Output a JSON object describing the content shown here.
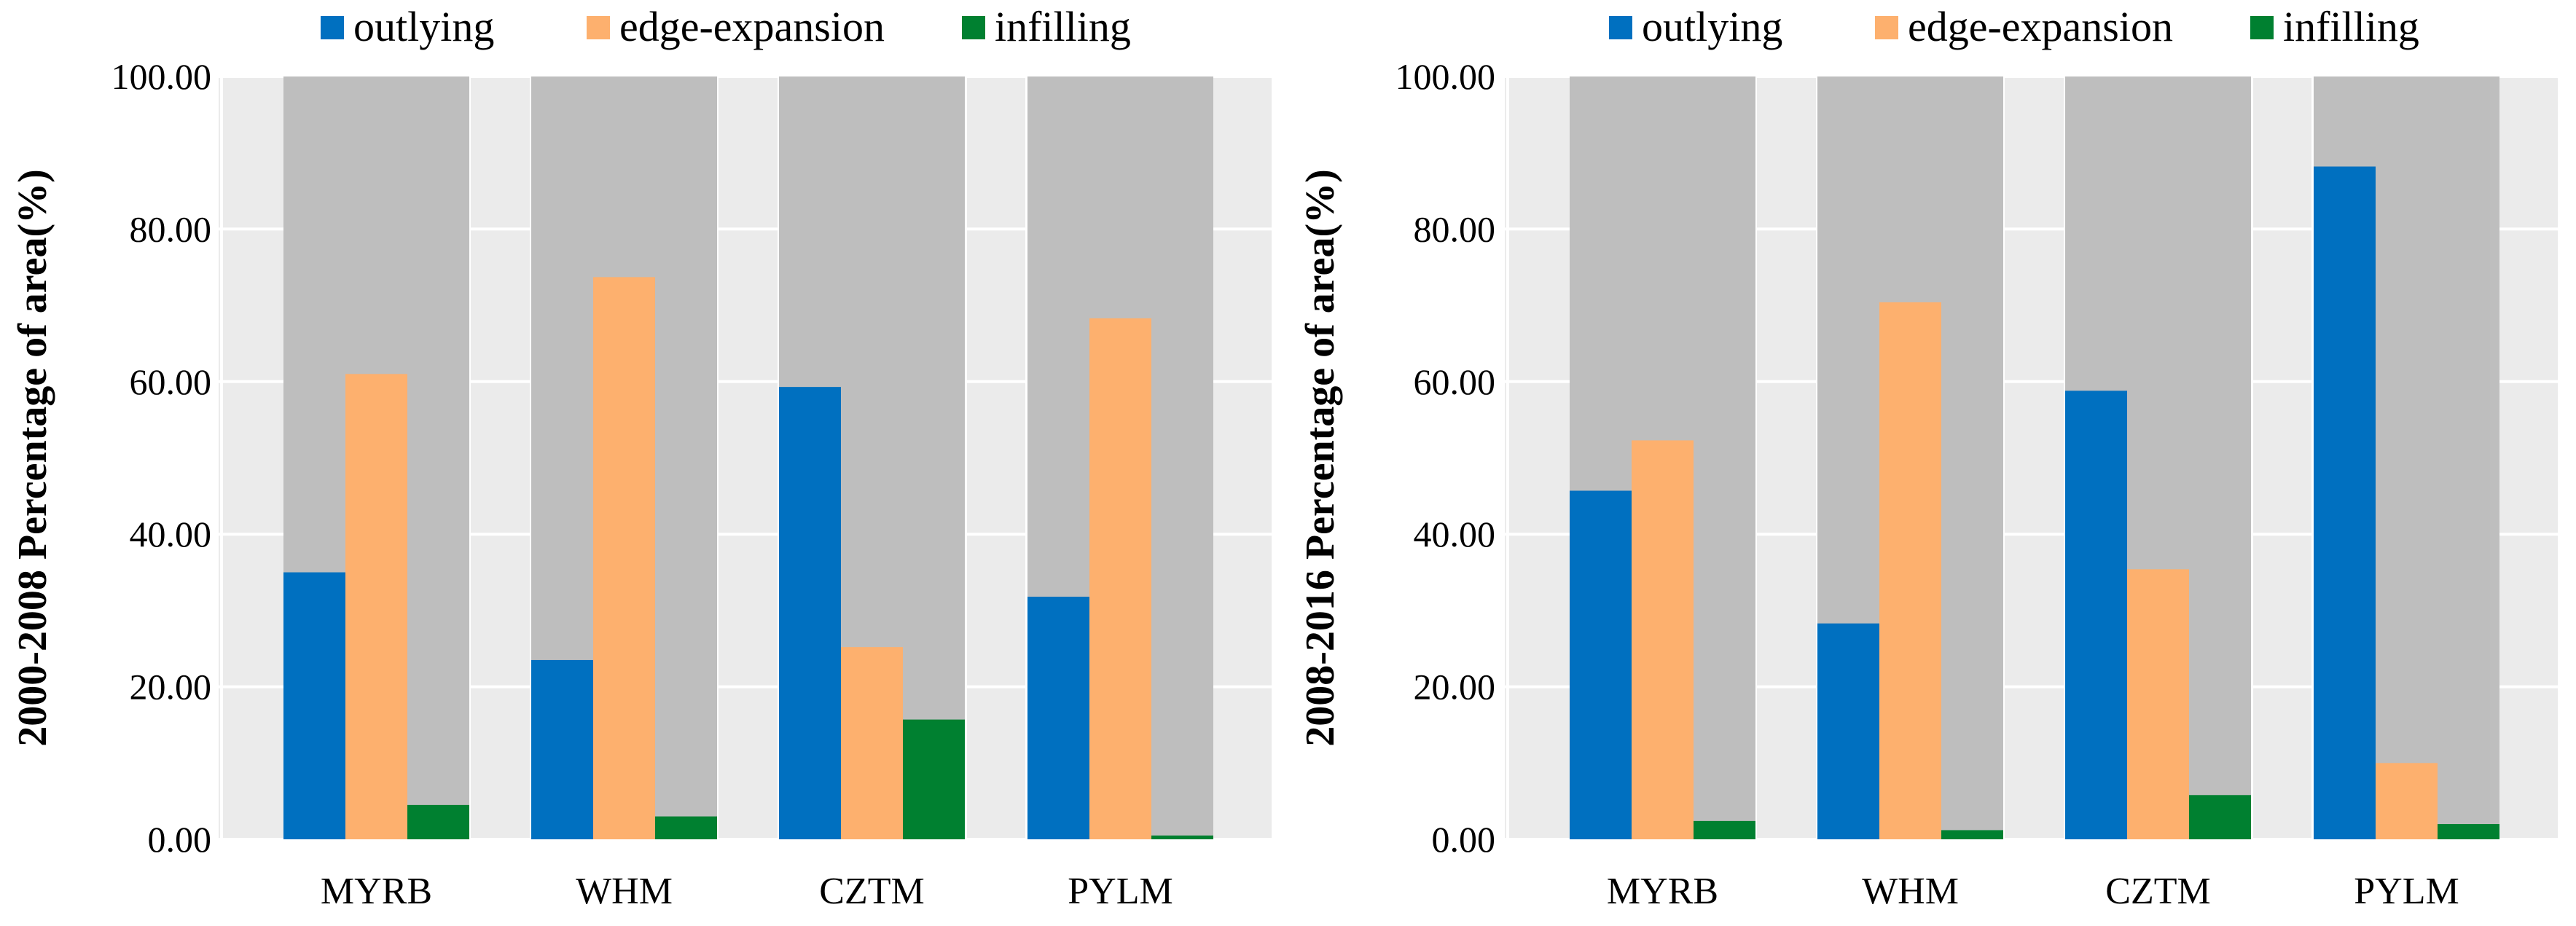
{
  "colors": {
    "outlying": "#0070C0",
    "edge_expansion": "#FDB06E",
    "infilling": "#008030",
    "panel_bg": "#EBEBEB",
    "column_bg": "#BEBEBE",
    "grid": "#FFFFFF"
  },
  "chart_data": [
    {
      "type": "bar",
      "ylabel": "2000-2008 Percentage of area(%)",
      "categories": [
        "MYRB",
        "WHM",
        "CZTM",
        "PYLM"
      ],
      "ylim": [
        0,
        100
      ],
      "yticks": [
        "0.00",
        "20.00",
        "40.00",
        "60.00",
        "80.00",
        "100.00"
      ],
      "legend_position": "top",
      "series": [
        {
          "name": "outlying",
          "values": [
            35.0,
            23.5,
            59.3,
            31.8
          ]
        },
        {
          "name": "edge-expansion",
          "values": [
            61.0,
            73.7,
            25.2,
            68.3
          ]
        },
        {
          "name": "infilling",
          "values": [
            4.5,
            3.0,
            15.7,
            0.5
          ]
        }
      ]
    },
    {
      "type": "bar",
      "ylabel": "2008-2016 Percentage of area(%)",
      "categories": [
        "MYRB",
        "WHM",
        "CZTM",
        "PYLM"
      ],
      "ylim": [
        0,
        100
      ],
      "yticks": [
        "0.00",
        "20.00",
        "40.00",
        "60.00",
        "80.00",
        "100.00"
      ],
      "legend_position": "top",
      "series": [
        {
          "name": "outlying",
          "values": [
            45.7,
            28.3,
            58.8,
            88.2
          ]
        },
        {
          "name": "edge-expansion",
          "values": [
            52.3,
            70.4,
            35.4,
            10.0
          ]
        },
        {
          "name": "infilling",
          "values": [
            2.4,
            1.2,
            5.8,
            2.0
          ]
        }
      ]
    }
  ]
}
